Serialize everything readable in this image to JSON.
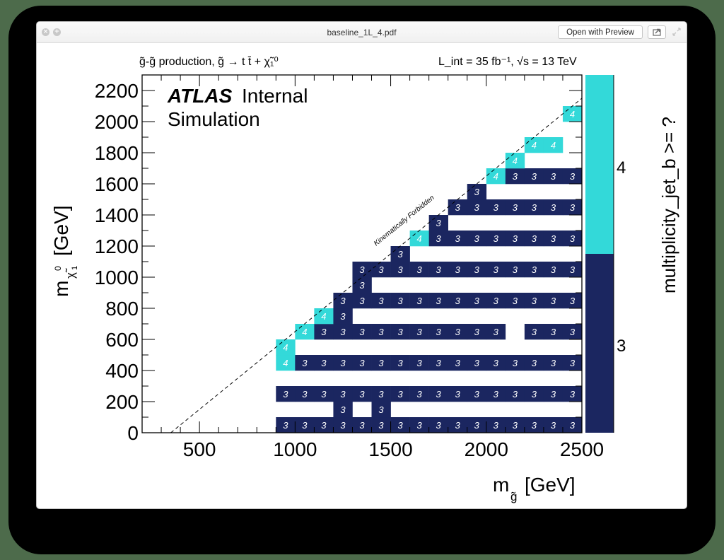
{
  "window": {
    "title": "baseline_1L_4.pdf",
    "open_button": "Open with Preview",
    "close_glyph": "×",
    "zoom_glyph": "+"
  },
  "plot": {
    "process_label": "g̃-g̃ production, g̃ → t t̄ + χ̃₁⁰",
    "lumi_label": "L_int = 35 fb⁻¹, √s = 13 TeV",
    "atlas_bold": "ATLAS",
    "atlas_status": "Internal",
    "atlas_sub": "Simulation",
    "forbidden_label": "Kinematically Forbidden",
    "colors": {
      "three": "#1b2660",
      "four": "#33d9d9"
    }
  },
  "chart_data": {
    "type": "heatmap",
    "title": "g̃-g̃ production, g̃ → t t̄ + χ̃₁⁰",
    "subtitle": "L_int = 35 fb⁻¹, √s = 13 TeV",
    "xlabel": "m_g̃ [GeV]",
    "ylabel": "m_χ̃₁⁰ [GeV]",
    "zlabel": "multiplicity_jet_b >= ?",
    "xlim": [
      200,
      2500
    ],
    "ylim": [
      0,
      2300
    ],
    "bin_width_x": 100,
    "bin_width_y": 100,
    "x_ticks": [
      500,
      1000,
      1500,
      2000,
      2500
    ],
    "y_ticks": [
      0,
      200,
      400,
      600,
      800,
      1000,
      1200,
      1400,
      1600,
      1800,
      2000,
      2200
    ],
    "z_levels": [
      3,
      4
    ],
    "z_colors": [
      "#1b2660",
      "#33d9d9"
    ],
    "annotation": "Kinematically Forbidden (dashed line m_χ = m_g̃ − 2m_t)",
    "rows": [
      {
        "y": 0,
        "cells": [
          [
            900,
            3
          ],
          [
            1000,
            3
          ],
          [
            1100,
            3
          ],
          [
            1200,
            3
          ],
          [
            1300,
            3
          ],
          [
            1400,
            3
          ],
          [
            1500,
            3
          ],
          [
            1600,
            3
          ],
          [
            1700,
            3
          ],
          [
            1800,
            3
          ],
          [
            1900,
            3
          ],
          [
            2000,
            3
          ],
          [
            2100,
            3
          ],
          [
            2200,
            3
          ],
          [
            2300,
            3
          ],
          [
            2400,
            3
          ]
        ]
      },
      {
        "y": 100,
        "cells": [
          [
            1200,
            3
          ],
          [
            1400,
            3
          ]
        ]
      },
      {
        "y": 200,
        "cells": [
          [
            900,
            3
          ],
          [
            1000,
            3
          ],
          [
            1100,
            3
          ],
          [
            1200,
            3
          ],
          [
            1300,
            3
          ],
          [
            1400,
            3
          ],
          [
            1500,
            3
          ],
          [
            1600,
            3
          ],
          [
            1700,
            3
          ],
          [
            1800,
            3
          ],
          [
            1900,
            3
          ],
          [
            2000,
            3
          ],
          [
            2100,
            3
          ],
          [
            2200,
            3
          ],
          [
            2300,
            3
          ],
          [
            2400,
            3
          ]
        ]
      },
      {
        "y": 400,
        "cells": [
          [
            900,
            4
          ],
          [
            1000,
            3
          ],
          [
            1100,
            3
          ],
          [
            1200,
            3
          ],
          [
            1300,
            3
          ],
          [
            1400,
            3
          ],
          [
            1500,
            3
          ],
          [
            1600,
            3
          ],
          [
            1700,
            3
          ],
          [
            1800,
            3
          ],
          [
            1900,
            3
          ],
          [
            2000,
            3
          ],
          [
            2100,
            3
          ],
          [
            2200,
            3
          ],
          [
            2300,
            3
          ],
          [
            2400,
            3
          ]
        ]
      },
      {
        "y": 500,
        "cells": [
          [
            900,
            4
          ]
        ]
      },
      {
        "y": 600,
        "cells": [
          [
            1000,
            4
          ],
          [
            1100,
            3
          ],
          [
            1200,
            3
          ],
          [
            1300,
            3
          ],
          [
            1400,
            3
          ],
          [
            1500,
            3
          ],
          [
            1600,
            3
          ],
          [
            1700,
            3
          ],
          [
            1800,
            3
          ],
          [
            1900,
            3
          ],
          [
            2000,
            3
          ],
          [
            2200,
            3
          ],
          [
            2300,
            3
          ],
          [
            2400,
            3
          ]
        ]
      },
      {
        "y": 700,
        "cells": [
          [
            1100,
            4
          ],
          [
            1200,
            3
          ]
        ]
      },
      {
        "y": 800,
        "cells": [
          [
            1200,
            3
          ],
          [
            1300,
            3
          ],
          [
            1400,
            3
          ],
          [
            1500,
            3
          ],
          [
            1600,
            3
          ],
          [
            1700,
            3
          ],
          [
            1800,
            3
          ],
          [
            1900,
            3
          ],
          [
            2000,
            3
          ],
          [
            2100,
            3
          ],
          [
            2200,
            3
          ],
          [
            2300,
            3
          ],
          [
            2400,
            3
          ]
        ]
      },
      {
        "y": 900,
        "cells": [
          [
            1300,
            3
          ]
        ]
      },
      {
        "y": 1000,
        "cells": [
          [
            1300,
            3
          ],
          [
            1400,
            3
          ],
          [
            1500,
            3
          ],
          [
            1600,
            3
          ],
          [
            1700,
            3
          ],
          [
            1800,
            3
          ],
          [
            1900,
            3
          ],
          [
            2000,
            3
          ],
          [
            2100,
            3
          ],
          [
            2200,
            3
          ],
          [
            2300,
            3
          ],
          [
            2400,
            3
          ]
        ]
      },
      {
        "y": 1100,
        "cells": [
          [
            1500,
            3
          ]
        ]
      },
      {
        "y": 1200,
        "cells": [
          [
            1600,
            4
          ],
          [
            1700,
            3
          ],
          [
            1800,
            3
          ],
          [
            1900,
            3
          ],
          [
            2000,
            3
          ],
          [
            2100,
            3
          ],
          [
            2200,
            3
          ],
          [
            2300,
            3
          ],
          [
            2400,
            3
          ]
        ]
      },
      {
        "y": 1300,
        "cells": [
          [
            1700,
            3
          ]
        ]
      },
      {
        "y": 1400,
        "cells": [
          [
            1800,
            3
          ],
          [
            1900,
            3
          ],
          [
            2000,
            3
          ],
          [
            2100,
            3
          ],
          [
            2200,
            3
          ],
          [
            2300,
            3
          ],
          [
            2400,
            3
          ]
        ]
      },
      {
        "y": 1500,
        "cells": [
          [
            1900,
            3
          ]
        ]
      },
      {
        "y": 1600,
        "cells": [
          [
            2000,
            4
          ],
          [
            2100,
            3
          ],
          [
            2200,
            3
          ],
          [
            2300,
            3
          ],
          [
            2400,
            3
          ]
        ]
      },
      {
        "y": 1700,
        "cells": [
          [
            2100,
            4
          ]
        ]
      },
      {
        "y": 1800,
        "cells": [
          [
            2200,
            4
          ],
          [
            2300,
            4
          ]
        ]
      },
      {
        "y": 2000,
        "cells": [
          [
            2400,
            4
          ]
        ]
      }
    ]
  }
}
